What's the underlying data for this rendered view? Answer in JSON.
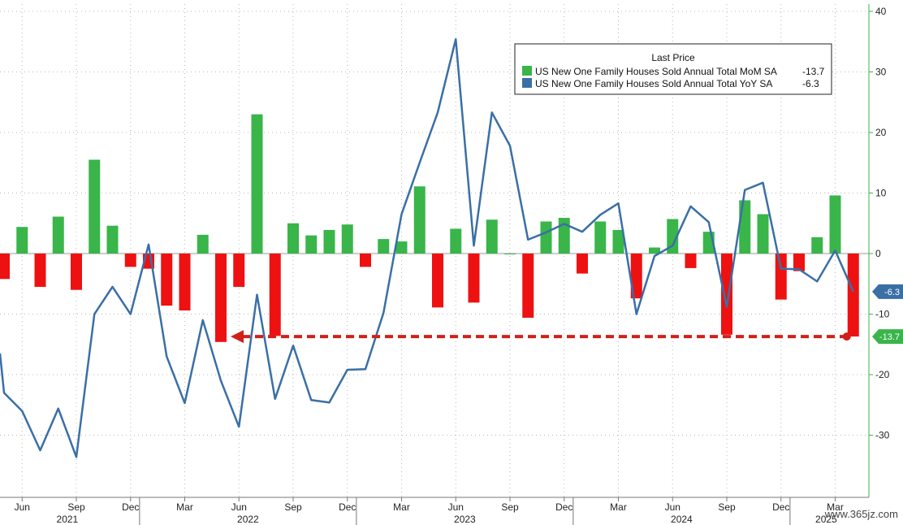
{
  "chart_data": {
    "type": "bar+line",
    "legend": {
      "title": "Last Price",
      "items": [
        {
          "label": "US New One Family Houses Sold Annual Total MoM SA",
          "value": "-13.7",
          "color": "#39b54a"
        },
        {
          "label": "US New One Family Houses Sold Annual Total YoY SA",
          "value": "-6.3",
          "color": "#3a6fa6"
        }
      ]
    },
    "y_axis": {
      "ticks": [
        "40",
        "30",
        "20",
        "10",
        "0",
        "-10",
        "-20",
        "-30"
      ],
      "range": [
        -40,
        41
      ]
    },
    "x_axis": {
      "month_labels": [
        "Jun",
        "Sep",
        "Dec",
        "Mar",
        "Jun",
        "Sep",
        "Dec",
        "Mar",
        "Jun",
        "Sep",
        "Dec",
        "Mar",
        "Jun",
        "Sep",
        "Dec",
        "Mar"
      ],
      "year_labels": [
        "2021",
        "2022",
        "2023",
        "2024",
        "2025"
      ]
    },
    "months": [
      "2021-05",
      "2021-06",
      "2021-07",
      "2021-08",
      "2021-09",
      "2021-10",
      "2021-11",
      "2021-12",
      "2022-01",
      "2022-02",
      "2022-03",
      "2022-04",
      "2022-05",
      "2022-06",
      "2022-07",
      "2022-08",
      "2022-09",
      "2022-10",
      "2022-11",
      "2022-12",
      "2023-01",
      "2023-02",
      "2023-03",
      "2023-04",
      "2023-05",
      "2023-06",
      "2023-07",
      "2023-08",
      "2023-09",
      "2023-10",
      "2023-11",
      "2023-12",
      "2024-01",
      "2024-02",
      "2024-03",
      "2024-04",
      "2024-05",
      "2024-06",
      "2024-07",
      "2024-08",
      "2024-09",
      "2024-10",
      "2024-11",
      "2024-12",
      "2025-01",
      "2025-02",
      "2025-03",
      "2025-04"
    ],
    "series": [
      {
        "name": "US New One Family Houses Sold Annual Total MoM SA",
        "kind": "bar",
        "values": [
          -4.2,
          4.4,
          -5.5,
          6.1,
          -6.0,
          15.5,
          4.6,
          -2.2,
          -2.5,
          -8.6,
          -9.4,
          3.1,
          -14.6,
          -5.5,
          23.0,
          -13.6,
          5.0,
          3.0,
          3.9,
          4.8,
          -2.2,
          2.4,
          2.0,
          11.1,
          -8.9,
          4.1,
          -8.1,
          5.6,
          0.0,
          -10.6,
          5.3,
          5.9,
          -3.3,
          5.3,
          3.9,
          -7.4,
          1.0,
          5.7,
          -2.4,
          3.6,
          -13.4,
          8.8,
          6.5,
          -7.6,
          -2.9,
          2.7,
          9.6,
          -13.7
        ]
      },
      {
        "name": "US New One Family Houses Sold Annual Total YoY SA",
        "kind": "line",
        "values": [
          -23.0,
          -26.0,
          -32.5,
          -25.6,
          -33.6,
          -10.0,
          -5.5,
          -10.0,
          1.5,
          -17.0,
          -24.7,
          -11.0,
          -21.0,
          -28.6,
          -6.8,
          -24.0,
          -15.2,
          -24.2,
          -24.6,
          -19.2,
          -19.1,
          -9.8,
          6.5,
          15.0,
          23.3,
          35.4,
          1.3,
          23.3,
          17.8,
          2.3,
          3.5,
          4.9,
          3.6,
          6.4,
          8.3,
          -10.0,
          -0.4,
          1.3,
          7.8,
          5.2,
          -8.8,
          10.5,
          11.7,
          -2.5,
          -2.6,
          -4.6,
          0.5,
          -6.3
        ]
      }
    ],
    "callouts": [
      {
        "text": "-6.3",
        "color": "#3a6fa6"
      },
      {
        "text": "-13.7",
        "color": "#39b54a"
      }
    ],
    "grid": true
  },
  "watermark": "www.365jz.com"
}
